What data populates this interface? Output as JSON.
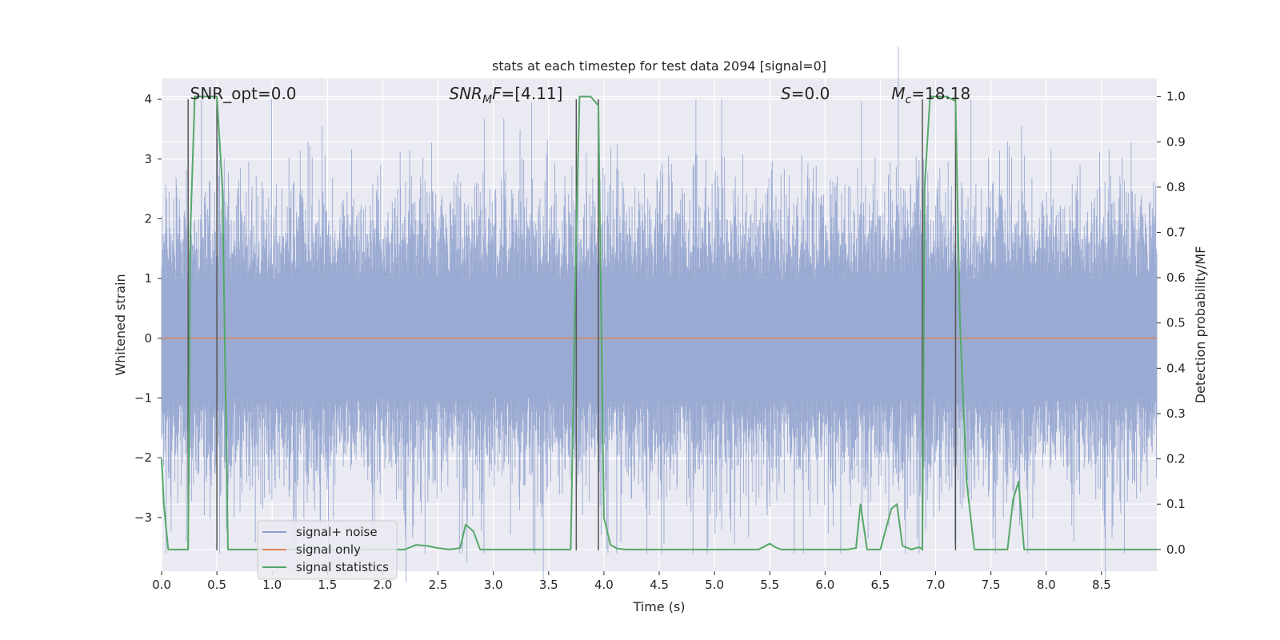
{
  "chart_data": {
    "type": "line",
    "title": "stats at each timestep for test data 2094 [signal=0]",
    "xlabel": "Time (s)",
    "ylabel_left": "Whitened strain",
    "ylabel_right": "Detection probability/MF",
    "xlim": [
      0.0,
      9.0
    ],
    "ylim_left": [
      -3.9,
      4.35
    ],
    "ylim_right": [
      -0.048,
      1.04
    ],
    "x_ticks": [
      0.0,
      0.5,
      1.0,
      1.5,
      2.0,
      2.5,
      3.0,
      3.5,
      4.0,
      4.5,
      5.0,
      5.5,
      6.0,
      6.5,
      7.0,
      7.5,
      8.0,
      8.5
    ],
    "x_tick_labels": [
      "0.0",
      "0.5",
      "1.0",
      "1.5",
      "2.0",
      "2.5",
      "3.0",
      "3.5",
      "4.0",
      "4.5",
      "5.0",
      "5.5",
      "6.0",
      "6.5",
      "7.0",
      "7.5",
      "8.0",
      "8.5"
    ],
    "y_left_ticks": [
      -3,
      -2,
      -1,
      0,
      1,
      2,
      3,
      4
    ],
    "y_left_tick_labels": [
      "−3",
      "−2",
      "−1",
      "0",
      "1",
      "2",
      "3",
      "4"
    ],
    "y_right_ticks": [
      0.0,
      0.1,
      0.2,
      0.3,
      0.4,
      0.5,
      0.6,
      0.7,
      0.8,
      0.9,
      1.0
    ],
    "y_right_tick_labels": [
      "0.0",
      "0.1",
      "0.2",
      "0.3",
      "0.4",
      "0.5",
      "0.6",
      "0.7",
      "0.8",
      "0.9",
      "1.0"
    ],
    "grid": true,
    "legend_position": "lower-left",
    "annotations": [
      {
        "text": "SNR_opt=0.0",
        "x": 0.2
      },
      {
        "text": "SNR_MF=[4.11]",
        "x": 2.6,
        "italic_sub": true
      },
      {
        "text": "S=0.0",
        "x": 5.6,
        "italic": true
      },
      {
        "text": "M_c=18.18",
        "x": 6.6,
        "italic_sub": true
      }
    ],
    "series": [
      {
        "name": "signal+ noise",
        "color": "#8c9fcd",
        "axis": "left",
        "description_kind": "noise",
        "envelope_typical": [
          -1.8,
          1.8
        ],
        "envelope_peaks": [
          -3.6,
          4.0
        ]
      },
      {
        "name": "signal only",
        "color": "#dd8452",
        "axis": "left",
        "x": [
          0.0,
          9.0
        ],
        "y": [
          0.0,
          0.0
        ]
      },
      {
        "name": "signal statistics",
        "color": "#55a868",
        "axis": "right",
        "x": [
          0.0,
          0.02,
          0.06,
          0.1,
          0.15,
          0.2,
          0.24,
          0.26,
          0.3,
          0.35,
          0.4,
          0.45,
          0.5,
          0.55,
          0.6,
          0.65,
          0.8,
          1.0,
          1.5,
          2.0,
          2.2,
          2.3,
          2.4,
          2.5,
          2.6,
          2.7,
          2.75,
          2.82,
          2.88,
          3.0,
          3.5,
          3.7,
          3.75,
          3.78,
          3.82,
          3.88,
          3.95,
          4.0,
          4.06,
          4.12,
          4.2,
          4.5,
          5.0,
          5.4,
          5.5,
          5.55,
          5.6,
          6.0,
          6.2,
          6.28,
          6.32,
          6.38,
          6.5,
          6.6,
          6.65,
          6.7,
          6.78,
          6.85,
          6.88,
          6.9,
          6.95,
          7.0,
          7.1,
          7.18,
          7.22,
          7.28,
          7.35,
          7.5,
          7.6,
          7.65,
          7.7,
          7.75,
          7.8,
          7.85,
          8.0,
          8.5,
          9.0
        ],
        "y": [
          0.2,
          0.1,
          0.0,
          0.0,
          0.0,
          0.0,
          0.0,
          0.7,
          1.0,
          1.0,
          1.0,
          1.0,
          1.0,
          0.8,
          0.0,
          0.0,
          0.0,
          0.0,
          0.0,
          0.0,
          0.0,
          0.01,
          0.008,
          0.003,
          0.0,
          0.003,
          0.055,
          0.04,
          0.0,
          0.0,
          0.0,
          0.0,
          0.7,
          1.0,
          1.0,
          1.0,
          0.98,
          0.07,
          0.01,
          0.002,
          0.0,
          0.0,
          0.0,
          0.0,
          0.013,
          0.005,
          0.0,
          0.0,
          0.0,
          0.003,
          0.1,
          0.0,
          0.0,
          0.09,
          0.1,
          0.008,
          0.0,
          0.005,
          0.0,
          0.8,
          1.0,
          1.0,
          1.0,
          0.99,
          0.5,
          0.15,
          0.0,
          0.0,
          0.0,
          0.0,
          0.11,
          0.15,
          0.0,
          0.0,
          0.0,
          0.0,
          0.0
        ]
      },
      {
        "name": "vertical markers",
        "color": "#555555",
        "axis": "left",
        "segments": [
          {
            "x": 0.24,
            "y": [
              -3.55,
              4.0
            ]
          },
          {
            "x": 0.5,
            "y": [
              -3.55,
              4.0
            ]
          },
          {
            "x": 3.75,
            "y": [
              -3.55,
              4.0
            ]
          },
          {
            "x": 3.95,
            "y": [
              -3.55,
              4.0
            ]
          },
          {
            "x": 6.88,
            "y": [
              -3.55,
              4.0
            ]
          },
          {
            "x": 7.18,
            "y": [
              -3.55,
              4.0
            ]
          }
        ]
      }
    ]
  },
  "legend": {
    "items": [
      {
        "label": "signal+ noise",
        "color": "#8c9fcd"
      },
      {
        "label": "signal only",
        "color": "#dd8452"
      },
      {
        "label": "signal statistics",
        "color": "#55a868"
      }
    ]
  },
  "colors": {
    "axes_bg": "#eaeaf2",
    "grid": "#ffffff",
    "noise": "#8c9fcd",
    "signal_only": "#dd8452",
    "stats": "#55a868",
    "markers": "#555555"
  }
}
